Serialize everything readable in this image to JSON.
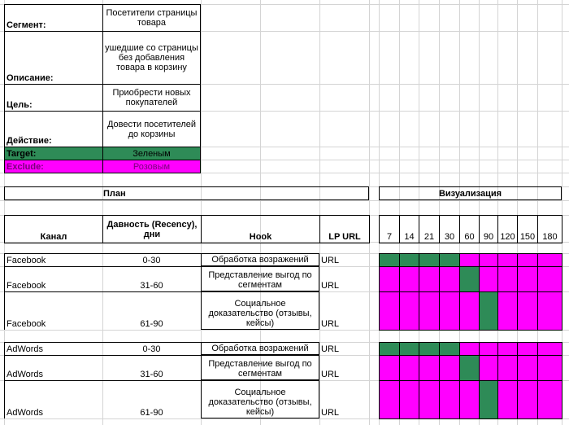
{
  "segment_block": {
    "segment_label": "Сегмент:",
    "segment_value": "Посетители страницы товара",
    "description_label": "Описание:",
    "description_value": "ушедшие со страницы без добавления товара в корзину",
    "goal_label": "Цель:",
    "goal_value": "Приобрести новых покупателей",
    "action_label": "Действие:",
    "action_value": "Довести посетителей до корзины",
    "target_label": "Target:",
    "target_value": "Зеленым",
    "exclude_label": "Exclude:",
    "exclude_value": "Розовым"
  },
  "plan": {
    "title": "План",
    "headers": {
      "channel": "Канал",
      "recency": "Давность (Recency), дни",
      "hook": "Hook",
      "lp_url": "LP URL"
    },
    "rows": [
      {
        "channel": "Facebook",
        "recency": "0-30",
        "hook": "Обработка возражений",
        "lp_url": "URL"
      },
      {
        "channel": "Facebook",
        "recency": "31-60",
        "hook": "Представление выгод по сегментам",
        "lp_url": "URL"
      },
      {
        "channel": "Facebook",
        "recency": "61-90",
        "hook": "Социальное доказательство (отзывы, кейсы)",
        "lp_url": "URL"
      },
      {
        "channel": "AdWords",
        "recency": "0-30",
        "hook": "Обработка возражений",
        "lp_url": "URL"
      },
      {
        "channel": "AdWords",
        "recency": "31-60",
        "hook": "Представление выгод по сегментам",
        "lp_url": "URL"
      },
      {
        "channel": "AdWords",
        "recency": "61-90",
        "hook": "Социальное доказательство (отзывы, кейсы)",
        "lp_url": "URL"
      }
    ]
  },
  "visualization": {
    "title": "Визуализация",
    "days": [
      "7",
      "14",
      "21",
      "30",
      "60",
      "90",
      "120",
      "150",
      "180"
    ],
    "rows": [
      [
        "G",
        "G",
        "G",
        "G",
        "P",
        "P",
        "P",
        "P",
        "P"
      ],
      [
        "P",
        "P",
        "P",
        "P",
        "G",
        "P",
        "P",
        "P",
        "P"
      ],
      [
        "P",
        "P",
        "P",
        "P",
        "P",
        "G",
        "P",
        "P",
        "P"
      ],
      [
        "G",
        "G",
        "G",
        "G",
        "P",
        "P",
        "P",
        "P",
        "P"
      ],
      [
        "P",
        "P",
        "P",
        "P",
        "G",
        "P",
        "P",
        "P",
        "P"
      ],
      [
        "P",
        "P",
        "P",
        "P",
        "P",
        "G",
        "P",
        "P",
        "P"
      ]
    ]
  },
  "colors": {
    "target_green": "#2e8b57",
    "exclude_magenta": "#ff00ff",
    "gridline": "#d4d4d4"
  }
}
